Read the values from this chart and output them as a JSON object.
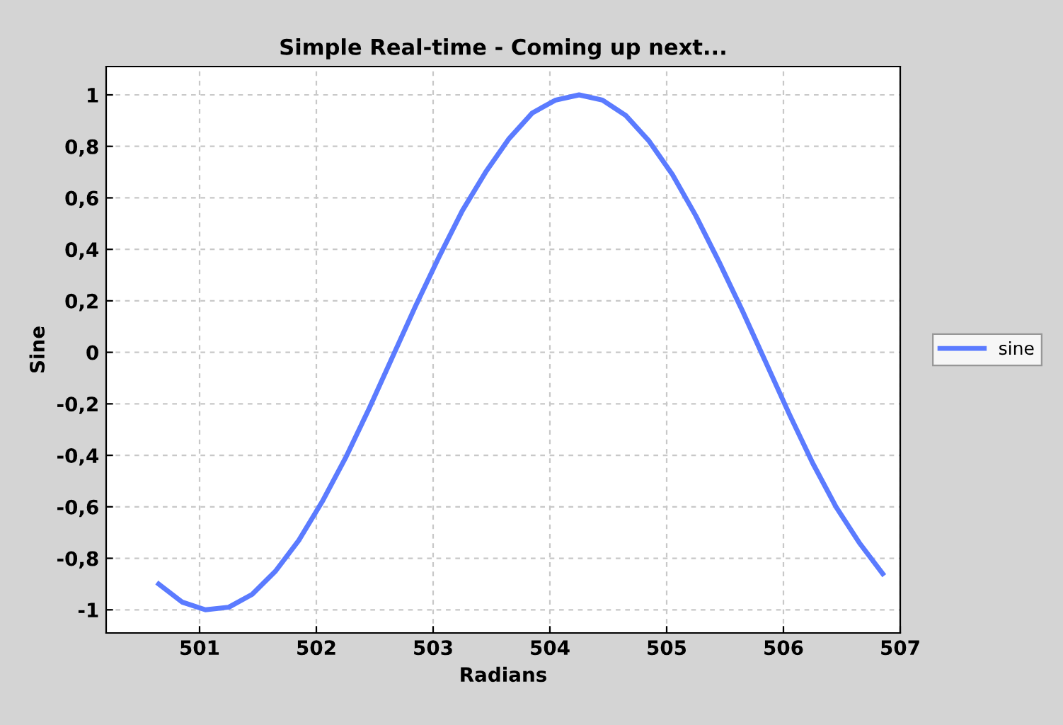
{
  "chart_data": {
    "type": "line",
    "title": "Simple Real-time - Coming up next...",
    "xlabel": "Radians",
    "ylabel": "Sine",
    "series": [
      {
        "name": "sine",
        "color": "#5b7bff",
        "x": [
          500.65,
          500.85,
          501.05,
          501.25,
          501.45,
          501.65,
          501.85,
          502.05,
          502.25,
          502.45,
          502.65,
          502.85,
          503.05,
          503.25,
          503.45,
          503.65,
          503.85,
          504.05,
          504.25,
          504.45,
          504.65,
          504.85,
          505.05,
          505.25,
          505.45,
          505.65,
          505.85,
          506.05,
          506.25,
          506.45,
          506.65,
          506.85
        ],
        "values": [
          -0.9,
          -0.97,
          -1.0,
          -0.99,
          -0.94,
          -0.85,
          -0.73,
          -0.58,
          -0.41,
          -0.22,
          -0.02,
          0.18,
          0.37,
          0.55,
          0.7,
          0.83,
          0.93,
          0.98,
          1.0,
          0.98,
          0.92,
          0.82,
          0.69,
          0.53,
          0.35,
          0.16,
          -0.04,
          -0.24,
          -0.43,
          -0.6,
          -0.74,
          -0.86
        ]
      }
    ],
    "xlim": [
      500.2,
      507.0
    ],
    "ylim": [
      -1.09,
      1.11
    ],
    "xticks": [
      501,
      502,
      503,
      504,
      505,
      506,
      507
    ],
    "yticks": [
      1,
      {
        "value": 0.8,
        "label": "0,8"
      },
      {
        "value": 0.6,
        "label": "0,6"
      },
      {
        "value": 0.4,
        "label": "0,4"
      },
      {
        "value": 0.2,
        "label": "0,2"
      },
      0,
      {
        "value": -0.2,
        "label": "-0,2"
      },
      {
        "value": -0.4,
        "label": "-0,4"
      },
      {
        "value": -0.6,
        "label": "-0,6"
      },
      {
        "value": -0.8,
        "label": "-0,8"
      },
      -1
    ],
    "grid": true,
    "legend": "right",
    "marker": "none",
    "line_style": "solid"
  }
}
